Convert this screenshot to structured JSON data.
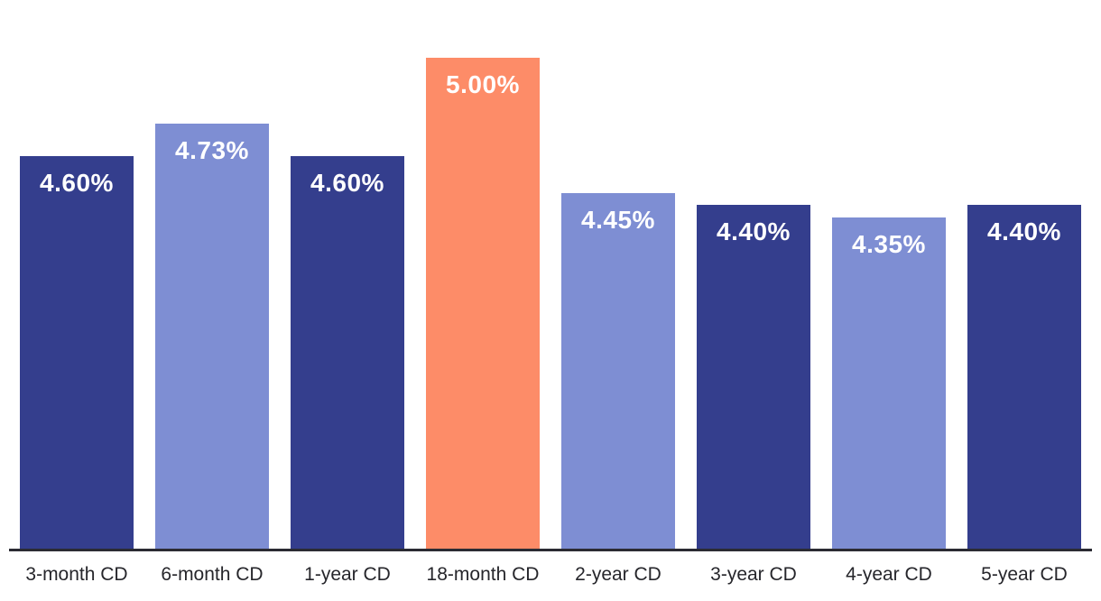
{
  "chart_data": {
    "type": "bar",
    "title": "",
    "xlabel": "",
    "ylabel": "",
    "categories": [
      "3-month CD",
      "6-month CD",
      "1-year CD",
      "18-month CD",
      "2-year CD",
      "3-year CD",
      "4-year CD",
      "5-year CD"
    ],
    "values": [
      4.6,
      4.73,
      4.6,
      5.0,
      4.45,
      4.4,
      4.35,
      4.4
    ],
    "data_labels": [
      "4.60%",
      "4.73%",
      "4.60%",
      "5.00%",
      "4.45%",
      "4.40%",
      "4.35%",
      "4.40%"
    ],
    "ylim": [
      3.0,
      5.0
    ],
    "grid": false,
    "legend": null,
    "highlighted_category": "18-month CD",
    "bar_colors": [
      "#343E8D",
      "#7E8ED3",
      "#343E8D",
      "#FD8C68",
      "#7E8ED3",
      "#343E8D",
      "#7E8ED3",
      "#343E8D"
    ],
    "colors": {
      "dark_blue": "#343E8D",
      "light_periwinkle": "#7E8ED3",
      "highlight_orange": "#FD8C68",
      "axis_line": "#2B2B33",
      "tick_label_text": "#26262B",
      "data_label_text": "#FFFFFF",
      "background": "#FFFFFF"
    }
  }
}
